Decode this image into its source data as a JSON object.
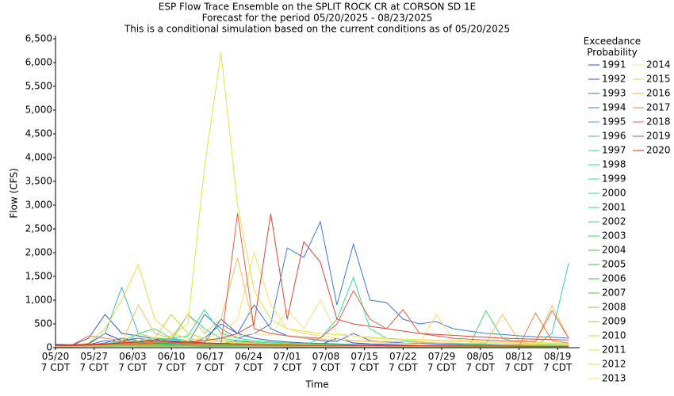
{
  "chart_data": {
    "type": "line",
    "title": "ESP Flow Trace Ensemble on the SPLIT ROCK CR at CORSON SD 1E",
    "subtitle": "Forecast for the period 05/20/2025 - 08/23/2025",
    "annotation": "This is a conditional simulation based on the current conditions as of 05/20/2025",
    "x_label": "Time",
    "y_label": "Flow (CFS)",
    "legend_title": "Exceedance\nProbability",
    "legend_position": "right",
    "grid": false,
    "xlim": [
      "05/20",
      "08/23"
    ],
    "xticks": [
      {
        "value": "05/20",
        "label": "05/20\n7 CDT"
      },
      {
        "value": "05/27",
        "label": "05/27\n7 CDT"
      },
      {
        "value": "06/03",
        "label": "06/03\n7 CDT"
      },
      {
        "value": "06/10",
        "label": "06/10\n7 CDT"
      },
      {
        "value": "06/17",
        "label": "06/17\n7 CDT"
      },
      {
        "value": "06/24",
        "label": "06/24\n7 CDT"
      },
      {
        "value": "07/01",
        "label": "07/01\n7 CDT"
      },
      {
        "value": "07/08",
        "label": "07/08\n7 CDT"
      },
      {
        "value": "07/15",
        "label": "07/15\n7 CDT"
      },
      {
        "value": "07/22",
        "label": "07/22\n7 CDT"
      },
      {
        "value": "07/29",
        "label": "07/29\n7 CDT"
      },
      {
        "value": "08/05",
        "label": "08/05\n7 CDT"
      },
      {
        "value": "08/12",
        "label": "08/12\n7 CDT"
      },
      {
        "value": "08/19",
        "label": "08/19\n7 CDT"
      }
    ],
    "ylim": [
      0,
      6500
    ],
    "yticks": [
      0,
      500,
      {
        "value": 1000,
        "label": "1,000"
      },
      {
        "value": 1500,
        "label": "1,500"
      },
      {
        "value": 2000,
        "label": "2,000"
      },
      {
        "value": 2500,
        "label": "2,500"
      },
      {
        "value": 3000,
        "label": "3,000"
      },
      {
        "value": 3500,
        "label": "3,500"
      },
      {
        "value": 4000,
        "label": "4,000"
      },
      {
        "value": 4500,
        "label": "4,500"
      },
      {
        "value": 5000,
        "label": "5,000"
      },
      {
        "value": 5500,
        "label": "5,500"
      },
      {
        "value": 6000,
        "label": "6,000"
      },
      {
        "value": 6500,
        "label": "6,500"
      }
    ],
    "x": [
      "05/20",
      "05/23",
      "05/26",
      "05/29",
      "06/01",
      "06/04",
      "06/07",
      "06/10",
      "06/13",
      "06/16",
      "06/19",
      "06/22",
      "06/25",
      "06/28",
      "07/01",
      "07/04",
      "07/07",
      "07/10",
      "07/13",
      "07/16",
      "07/19",
      "07/22",
      "07/25",
      "07/28",
      "07/31",
      "08/03",
      "08/06",
      "08/09",
      "08/12",
      "08/15",
      "08/18",
      "08/21"
    ],
    "series": [
      {
        "name": "1991",
        "color": "#2f4fbf",
        "values": [
          70,
          60,
          80,
          300,
          150,
          200,
          120,
          100,
          90,
          80,
          70,
          150,
          100,
          80,
          70,
          60,
          60,
          200,
          100,
          80,
          70,
          60,
          50,
          50,
          50,
          40,
          40,
          40,
          40,
          35,
          35,
          30
        ]
      },
      {
        "name": "1992",
        "color": "#3458c8",
        "values": [
          60,
          50,
          200,
          700,
          300,
          250,
          180,
          150,
          120,
          100,
          600,
          300,
          200,
          150,
          120,
          100,
          90,
          80,
          70,
          60,
          60,
          50,
          50,
          50,
          45,
          45,
          40,
          40,
          40,
          40,
          35,
          35
        ]
      },
      {
        "name": "1993",
        "color": "#3a6ad0",
        "values": [
          50,
          45,
          60,
          150,
          120,
          100,
          90,
          80,
          70,
          200,
          500,
          300,
          900,
          400,
          250,
          200,
          150,
          130,
          300,
          150,
          120,
          100,
          90,
          80,
          70,
          60,
          60,
          50,
          50,
          50,
          45,
          45
        ]
      },
      {
        "name": "1994",
        "color": "#3f7ad6",
        "values": [
          40,
          40,
          50,
          100,
          200,
          150,
          120,
          100,
          90,
          700,
          400,
          200,
          300,
          500,
          2100,
          1900,
          2650,
          900,
          2180,
          1000,
          950,
          600,
          500,
          550,
          400,
          350,
          300,
          280,
          250,
          230,
          220,
          200
        ]
      },
      {
        "name": "1995",
        "color": "#4a9ad8",
        "values": [
          30,
          30,
          40,
          80,
          120,
          200,
          150,
          100,
          120,
          80,
          70,
          60,
          60,
          50,
          50,
          50,
          45,
          45,
          40,
          40,
          40,
          40,
          35,
          35,
          35,
          35,
          30,
          30,
          30,
          30,
          30,
          30
        ]
      },
      {
        "name": "1996",
        "color": "#3fb8c8",
        "values": [
          30,
          30,
          100,
          300,
          1270,
          300,
          200,
          180,
          150,
          100,
          90,
          80,
          70,
          60,
          50,
          50,
          50,
          45,
          40,
          40,
          40,
          40,
          35,
          35,
          35,
          35,
          30,
          30,
          30,
          30,
          30,
          30
        ]
      },
      {
        "name": "1997",
        "color": "#30d0b0",
        "values": [
          30,
          30,
          40,
          50,
          60,
          70,
          80,
          70,
          60,
          50,
          50,
          45,
          45,
          40,
          40,
          40,
          40,
          35,
          35,
          35,
          35,
          30,
          30,
          30,
          30,
          30,
          30,
          30,
          30,
          30,
          300,
          1780
        ]
      },
      {
        "name": "1998",
        "color": "#30d8a0",
        "values": [
          40,
          40,
          50,
          60,
          80,
          100,
          200,
          150,
          700,
          400,
          200,
          150,
          120,
          100,
          90,
          80,
          70,
          60,
          60,
          50,
          50,
          50,
          45,
          45,
          40,
          40,
          40,
          40,
          35,
          35,
          35,
          35
        ]
      },
      {
        "name": "1999",
        "color": "#2fe0a0",
        "values": [
          30,
          30,
          35,
          40,
          50,
          60,
          70,
          60,
          50,
          50,
          45,
          45,
          40,
          40,
          40,
          40,
          200,
          600,
          1480,
          400,
          200,
          150,
          120,
          100,
          90,
          80,
          70,
          60,
          60,
          50,
          50,
          50
        ]
      },
      {
        "name": "2000",
        "color": "#2ee090",
        "values": [
          40,
          40,
          50,
          60,
          70,
          300,
          400,
          200,
          150,
          100,
          90,
          80,
          70,
          60,
          50,
          50,
          45,
          45,
          40,
          40,
          40,
          40,
          35,
          35,
          35,
          35,
          30,
          30,
          30,
          30,
          30,
          30
        ]
      },
      {
        "name": "2001",
        "color": "#30e080",
        "values": [
          50,
          50,
          60,
          80,
          100,
          120,
          150,
          200,
          250,
          800,
          300,
          200,
          150,
          120,
          100,
          90,
          80,
          70,
          60,
          60,
          50,
          50,
          50,
          45,
          45,
          40,
          40,
          40,
          40,
          35,
          35,
          35
        ]
      },
      {
        "name": "2002",
        "color": "#40d870",
        "values": [
          30,
          30,
          30,
          35,
          40,
          40,
          40,
          40,
          40,
          40,
          40,
          40,
          40,
          40,
          40,
          40,
          40,
          40,
          40,
          40,
          40,
          40,
          40,
          40,
          40,
          40,
          780,
          200,
          100,
          80,
          70,
          60
        ]
      },
      {
        "name": "2003",
        "color": "#40d060",
        "values": [
          40,
          40,
          45,
          50,
          60,
          80,
          100,
          90,
          80,
          70,
          60,
          60,
          50,
          50,
          45,
          45,
          40,
          40,
          40,
          40,
          35,
          35,
          35,
          35,
          30,
          30,
          30,
          30,
          30,
          30,
          30,
          30
        ]
      },
      {
        "name": "2004",
        "color": "#3cc850",
        "values": [
          30,
          30,
          30,
          35,
          40,
          45,
          50,
          50,
          45,
          45,
          40,
          40,
          40,
          40,
          35,
          35,
          35,
          35,
          30,
          30,
          30,
          30,
          30,
          30,
          30,
          30,
          30,
          30,
          30,
          30,
          30,
          30
        ]
      },
      {
        "name": "2005",
        "color": "#40c040",
        "values": [
          30,
          30,
          35,
          40,
          45,
          50,
          60,
          55,
          50,
          45,
          40,
          40,
          40,
          40,
          35,
          35,
          35,
          35,
          30,
          30,
          30,
          30,
          30,
          30,
          30,
          30,
          30,
          30,
          30,
          30,
          30,
          30
        ]
      },
      {
        "name": "2006",
        "color": "#50c040",
        "values": [
          20,
          20,
          25,
          25,
          30,
          30,
          30,
          30,
          30,
          25,
          25,
          25,
          25,
          25,
          20,
          20,
          20,
          20,
          20,
          20,
          20,
          20,
          20,
          20,
          20,
          20,
          20,
          20,
          20,
          20,
          20,
          20
        ]
      },
      {
        "name": "2007",
        "color": "#60c040",
        "values": [
          40,
          40,
          50,
          60,
          80,
          100,
          120,
          110,
          100,
          90,
          80,
          70,
          60,
          60,
          50,
          50,
          50,
          45,
          45,
          40,
          40,
          40,
          40,
          35,
          35,
          35,
          35,
          30,
          30,
          30,
          30,
          30
        ]
      },
      {
        "name": "2008",
        "color": "#80c840",
        "values": [
          30,
          30,
          40,
          50,
          60,
          70,
          80,
          100,
          150,
          200,
          150,
          120,
          100,
          90,
          80,
          70,
          60,
          60,
          50,
          50,
          50,
          45,
          45,
          40,
          40,
          40,
          40,
          35,
          35,
          35,
          35,
          35
        ]
      },
      {
        "name": "2009",
        "color": "#a0d040",
        "values": [
          20,
          20,
          25,
          30,
          35,
          40,
          40,
          40,
          35,
          35,
          30,
          30,
          30,
          30,
          30,
          25,
          25,
          25,
          25,
          25,
          25,
          20,
          20,
          20,
          20,
          20,
          20,
          20,
          20,
          20,
          20,
          20
        ]
      },
      {
        "name": "2010",
        "color": "#c8d840",
        "values": [
          40,
          40,
          50,
          80,
          150,
          300,
          200,
          700,
          300,
          200,
          150,
          120,
          100,
          90,
          80,
          70,
          60,
          60,
          50,
          50,
          50,
          45,
          45,
          40,
          40,
          40,
          40,
          35,
          35,
          35,
          35,
          35
        ]
      },
      {
        "name": "2011",
        "color": "#e8e040",
        "values": [
          50,
          50,
          60,
          80,
          100,
          150,
          200,
          250,
          500,
          3800,
          6200,
          3000,
          1200,
          600,
          400,
          350,
          300,
          270,
          250,
          220,
          200,
          180,
          170,
          160,
          150,
          140,
          130,
          120,
          120,
          110,
          100,
          100
        ]
      },
      {
        "name": "2012",
        "color": "#f0d840",
        "values": [
          40,
          40,
          100,
          400,
          1000,
          1750,
          600,
          300,
          200,
          150,
          120,
          100,
          90,
          80,
          70,
          60,
          60,
          50,
          50,
          50,
          45,
          45,
          40,
          40,
          40,
          40,
          35,
          35,
          35,
          35,
          35,
          35
        ]
      },
      {
        "name": "2013",
        "color": "#f8e060",
        "values": [
          30,
          30,
          40,
          50,
          60,
          70,
          80,
          100,
          150,
          200,
          300,
          600,
          2000,
          900,
          400,
          300,
          250,
          200,
          150,
          120,
          100,
          90,
          80,
          700,
          200,
          120,
          100,
          90,
          80,
          70,
          60,
          60
        ]
      },
      {
        "name": "2014",
        "color": "#f4e080",
        "values": [
          40,
          40,
          50,
          60,
          70,
          80,
          90,
          100,
          120,
          150,
          200,
          250,
          300,
          250,
          800,
          400,
          1000,
          300,
          250,
          200,
          180,
          160,
          150,
          140,
          130,
          120,
          110,
          100,
          100,
          90,
          90,
          80
        ]
      },
      {
        "name": "2015",
        "color": "#f0c060",
        "values": [
          50,
          50,
          60,
          80,
          100,
          900,
          300,
          200,
          700,
          300,
          600,
          1900,
          400,
          300,
          250,
          200,
          180,
          160,
          150,
          140,
          130,
          120,
          110,
          100,
          100,
          90,
          90,
          700,
          150,
          120,
          880,
          200
        ]
      },
      {
        "name": "2016",
        "color": "#f0a858",
        "values": [
          40,
          40,
          50,
          60,
          70,
          80,
          90,
          100,
          120,
          100,
          90,
          80,
          70,
          60,
          60,
          50,
          50,
          50,
          45,
          45,
          40,
          40,
          40,
          40,
          35,
          35,
          35,
          35,
          35,
          30,
          30,
          30
        ]
      },
      {
        "name": "2017",
        "color": "#e88050",
        "values": [
          60,
          60,
          250,
          200,
          150,
          120,
          100,
          90,
          80,
          70,
          60,
          60,
          50,
          50,
          45,
          45,
          40,
          40,
          40,
          40,
          35,
          35,
          35,
          35,
          30,
          30,
          30,
          30,
          30,
          730,
          150,
          100
        ]
      },
      {
        "name": "2018",
        "color": "#e06048",
        "values": [
          50,
          50,
          60,
          80,
          100,
          120,
          150,
          120,
          100,
          90,
          80,
          2830,
          400,
          300,
          250,
          220,
          200,
          500,
          1200,
          600,
          400,
          800,
          300,
          250,
          200,
          180,
          160,
          150,
          140,
          130,
          780,
          200
        ]
      },
      {
        "name": "2019",
        "color": "#d84838",
        "values": [
          40,
          40,
          50,
          60,
          70,
          80,
          90,
          100,
          120,
          150,
          200,
          300,
          500,
          2820,
          600,
          2230,
          1800,
          600,
          500,
          450,
          400,
          350,
          300,
          280,
          260,
          240,
          220,
          200,
          190,
          180,
          170,
          160
        ]
      },
      {
        "name": "2020",
        "color": "#c83020",
        "values": [
          60,
          60,
          70,
          80,
          100,
          120,
          150,
          130,
          120,
          100,
          90,
          80,
          70,
          60,
          60,
          50,
          50,
          50,
          45,
          45,
          40,
          40,
          40,
          40,
          35,
          35,
          35,
          35,
          30,
          30,
          30,
          30
        ]
      }
    ]
  }
}
